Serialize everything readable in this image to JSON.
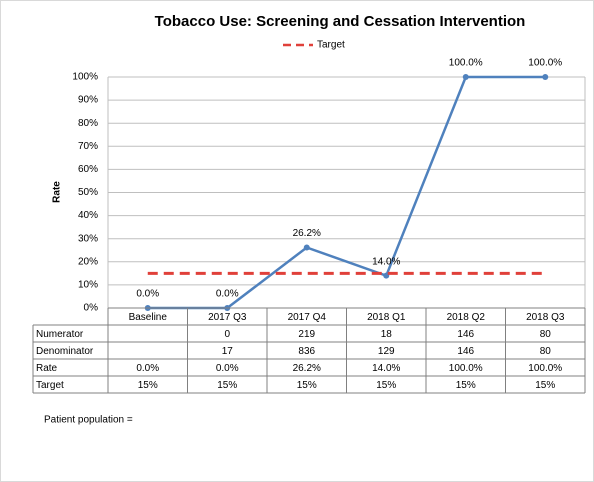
{
  "chart_data": {
    "type": "line",
    "title": "Tobacco Use: Screening and Cessation Intervention",
    "y_label": "Rate",
    "categories": [
      "Baseline",
      "2017 Q3",
      "2017 Q4",
      "2018 Q1",
      "2018 Q2",
      "2018 Q3"
    ],
    "series": [
      {
        "name": "Rate",
        "color": "#4f81bd",
        "dash": false,
        "in_legend": false,
        "data_labels": true,
        "values": [
          0,
          0,
          26.2,
          14.0,
          100,
          100
        ],
        "value_labels": [
          "0.0%",
          "0.0%",
          "26.2%",
          "14.0%",
          "100.0%",
          "100.0%"
        ]
      },
      {
        "name": "Target",
        "color": "#e0403a",
        "dash": true,
        "in_legend": true,
        "data_labels": false,
        "values": [
          15,
          15,
          15,
          15,
          15,
          15
        ],
        "value_labels": [
          "15%",
          "15%",
          "15%",
          "15%",
          "15%",
          "15%"
        ]
      }
    ],
    "ylim": [
      0,
      100
    ],
    "yticks": [
      {
        "value": 0,
        "label": "0%"
      },
      {
        "value": 10,
        "label": "10%"
      },
      {
        "value": 20,
        "label": "20%"
      },
      {
        "value": 30,
        "label": "30%"
      },
      {
        "value": 40,
        "label": "40%"
      },
      {
        "value": 50,
        "label": "50%"
      },
      {
        "value": 60,
        "label": "60%"
      },
      {
        "value": 70,
        "label": "70%"
      },
      {
        "value": 80,
        "label": "80%"
      },
      {
        "value": 90,
        "label": "90%"
      },
      {
        "value": 100,
        "label": "100%"
      }
    ],
    "grid": true,
    "legend": "top"
  },
  "table": {
    "rows": [
      {
        "label": "Numerator",
        "values": [
          null,
          0,
          219,
          18,
          146,
          80
        ]
      },
      {
        "label": "Denominator",
        "values": [
          null,
          17,
          836,
          129,
          146,
          80
        ]
      }
    ]
  },
  "footer": "Patient population ="
}
